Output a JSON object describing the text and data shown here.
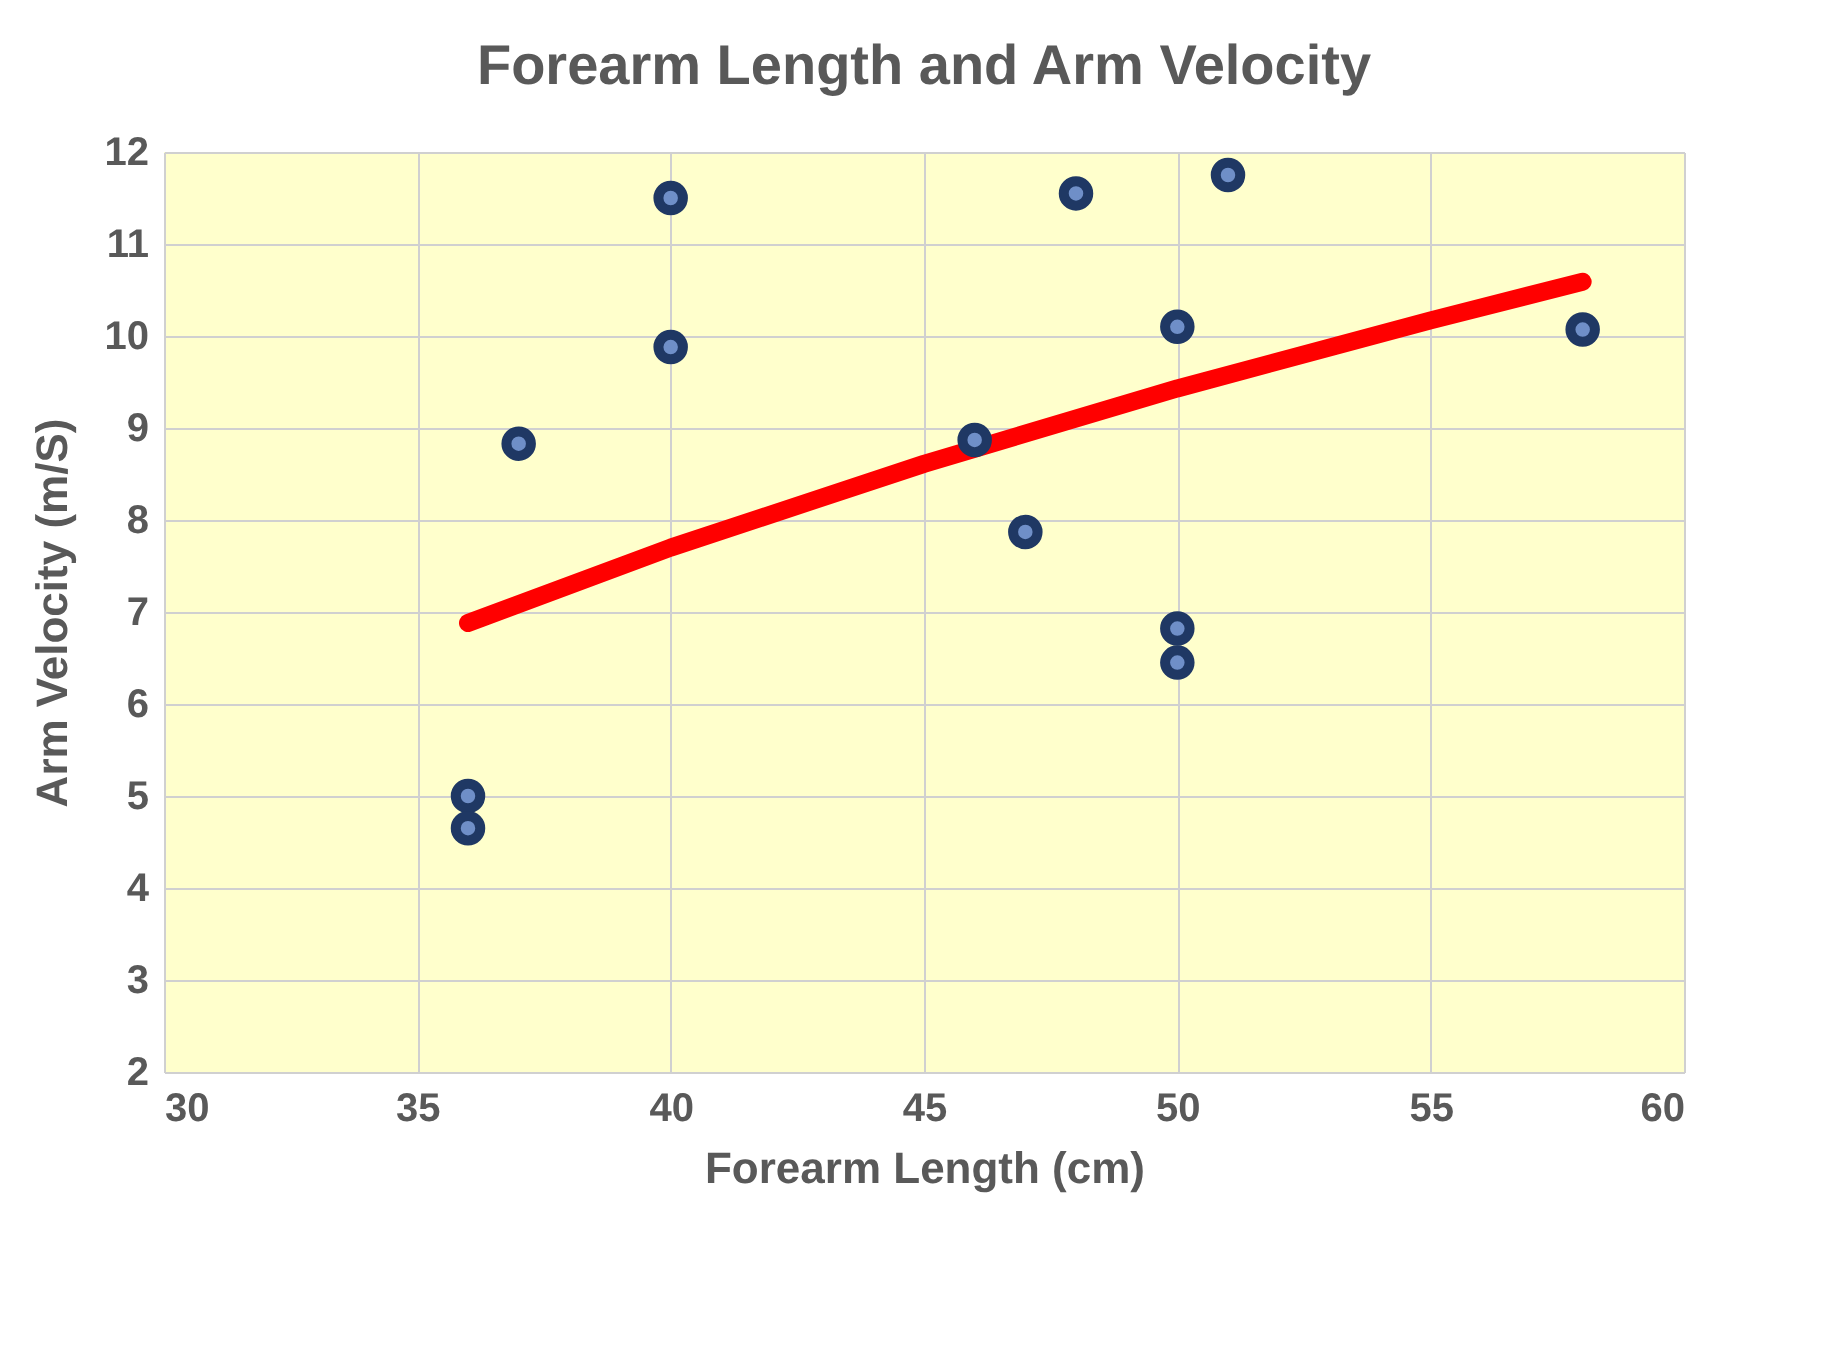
{
  "chart_data": {
    "type": "scatter",
    "title": "Forearm Length and Arm Velocity",
    "xlabel": "Forearm Length (cm)",
    "ylabel": "Arm Velocity (m/S)",
    "xlim": [
      30,
      60
    ],
    "xticks": [
      30,
      35,
      40,
      45,
      50,
      55,
      60
    ],
    "ylim": [
      2,
      12
    ],
    "yticks": [
      2,
      3,
      4,
      5,
      6,
      7,
      8,
      9,
      10,
      11,
      12
    ],
    "grid": true,
    "series": [
      {
        "color": "#1f3864",
        "marker": "circle",
        "x": [
          36,
          36,
          37,
          40,
          40,
          46,
          47,
          48,
          50,
          50,
          50,
          51,
          58
        ],
        "values": [
          5.0,
          4.65,
          8.83,
          11.5,
          9.88,
          8.87,
          7.87,
          11.55,
          10.1,
          6.82,
          6.45,
          11.75,
          10.07
        ]
      },
      {
        "type": "line",
        "color": "#ff0000",
        "x": [
          36,
          40,
          45,
          50,
          55,
          58
        ],
        "values": [
          6.88,
          7.7,
          8.61,
          9.43,
          10.17,
          10.59
        ]
      }
    ]
  }
}
